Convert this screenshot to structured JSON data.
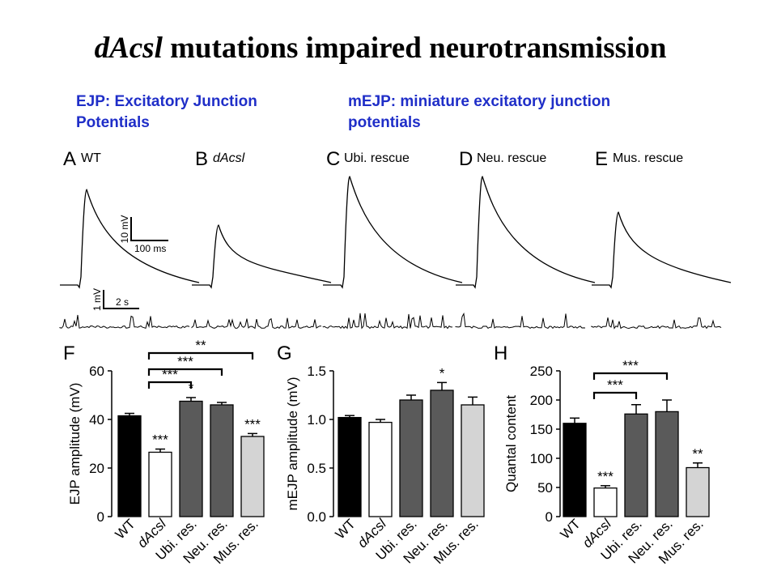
{
  "slide": {
    "title_italic": "dAcsl",
    "title_rest": " mutations impaired neurotransmission",
    "ejp_definition": "EJP: Excitatory Junction Potentials",
    "mejp_definition": "mEJP: miniature excitatory junction potentials"
  },
  "traces": {
    "panels": [
      {
        "letter": "A",
        "label": "WT",
        "italic": false
      },
      {
        "letter": "B",
        "label": "dAcsl",
        "italic": true
      },
      {
        "letter": "C",
        "label": "Ubi. rescue",
        "italic": false
      },
      {
        "letter": "D",
        "label": "Neu. rescue",
        "italic": false
      },
      {
        "letter": "E",
        "label": "Mus. rescue",
        "italic": false
      }
    ],
    "ejp_scale_v": "10 mV",
    "ejp_scale_t": "100 ms",
    "mejp_scale_v": "1 mV",
    "mejp_scale_t": "2 s"
  },
  "colors": {
    "definition_text": "#1f2ec8",
    "wt": "#000000",
    "dacsl": "#ffffff",
    "ubi": "#5a5a5a",
    "neu": "#5a5a5a",
    "mus": "#d4d4d4"
  },
  "chart_data": [
    {
      "type": "bar",
      "panel": "F",
      "categories": [
        "WT",
        "dAcsl",
        "Ubi. res.",
        "Neu. res.",
        "Mus. res."
      ],
      "values": [
        41.5,
        26.5,
        47.5,
        46,
        33
      ],
      "errors": [
        1.0,
        1.3,
        1.5,
        1.0,
        1.2
      ],
      "ylabel": "EJP amplitude (mV)",
      "ylim": [
        0,
        60
      ],
      "yticks": [
        0,
        20,
        40,
        60
      ],
      "bar_annotations": [
        "",
        "***",
        "*",
        "",
        "***"
      ],
      "comparisons": [
        {
          "from": 1,
          "to": 2,
          "label": "***"
        },
        {
          "from": 1,
          "to": 3,
          "label": "***"
        },
        {
          "from": 1,
          "to": 4,
          "label": "**"
        }
      ]
    },
    {
      "type": "bar",
      "panel": "G",
      "categories": [
        "WT",
        "dAcsl",
        "Ubi. res.",
        "Neu. res.",
        "Mus. res."
      ],
      "values": [
        1.02,
        0.97,
        1.2,
        1.3,
        1.15
      ],
      "errors": [
        0.02,
        0.03,
        0.05,
        0.08,
        0.08
      ],
      "ylabel": "mEJP amplitude (mV)",
      "ylim": [
        0,
        1.5
      ],
      "yticks": [
        0,
        0.5,
        1.0,
        1.5
      ],
      "bar_annotations": [
        "",
        "",
        "",
        "*",
        ""
      ],
      "comparisons": []
    },
    {
      "type": "bar",
      "panel": "H",
      "categories": [
        "WT",
        "dAcsl",
        "Ubi. res.",
        "Neu. res.",
        "Mus. res."
      ],
      "values": [
        160,
        49,
        176,
        180,
        84
      ],
      "errors": [
        9,
        4,
        16,
        20,
        8
      ],
      "ylabel": "Quantal content",
      "ylim": [
        0,
        250
      ],
      "yticks": [
        0,
        50,
        100,
        150,
        200,
        250
      ],
      "bar_annotations": [
        "",
        "***",
        "",
        "",
        "**"
      ],
      "comparisons": [
        {
          "from": 1,
          "to": 2,
          "label": "***"
        },
        {
          "from": 1,
          "to": 3,
          "label": "***"
        }
      ]
    }
  ]
}
